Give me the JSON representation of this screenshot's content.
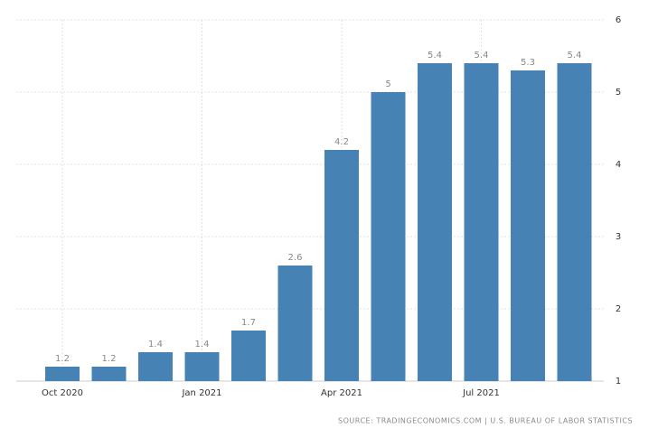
{
  "chart_data": {
    "type": "bar",
    "categories": [
      "Oct 2020",
      null,
      null,
      "Jan 2021",
      null,
      null,
      "Apr 2021",
      null,
      null,
      "Jul 2021",
      null,
      null
    ],
    "values": [
      1.2,
      1.2,
      1.4,
      1.4,
      1.7,
      2.6,
      4.2,
      5,
      5.4,
      5.4,
      5.3,
      5.4
    ],
    "color": "#4682b4",
    "ylim": [
      1,
      6
    ],
    "yticks": [
      1,
      2,
      3,
      4,
      5,
      6
    ],
    "grid": true,
    "source": "SOURCE: TRADINGECONOMICS.COM | U.S. BUREAU OF LABOR STATISTICS"
  }
}
